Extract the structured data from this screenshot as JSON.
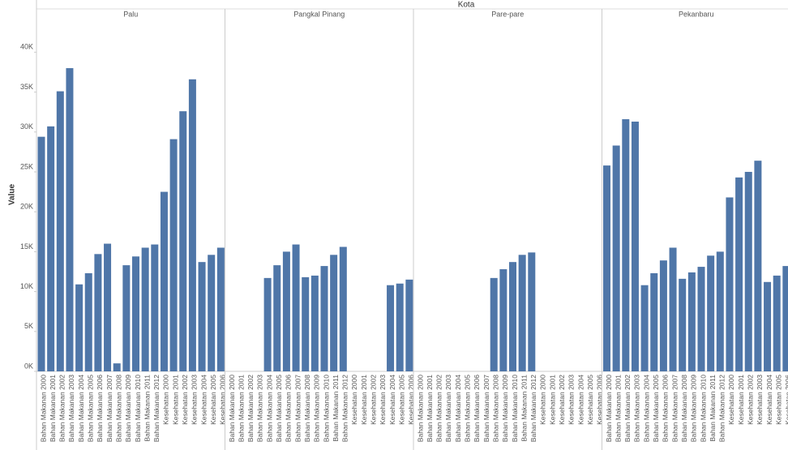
{
  "chart_data": {
    "type": "bar",
    "header": "Kota",
    "ylabel": "Value",
    "color": "#4f76a8",
    "categories": [
      "Bahan Makanan 2000",
      "Bahan Makanan 2001",
      "Bahan Makanan 2002",
      "Bahan Makanan 2003",
      "Bahan Makanan 2004",
      "Bahan Makanan 2005",
      "Bahan Makanan 2006",
      "Bahan Makanan 2007",
      "Bahan Makanan 2008",
      "Bahan Makanan 2009",
      "Bahan Makanan 2010",
      "Bahan Makanan 2011",
      "Bahan Makanan 2012",
      "Kesehatan 2000",
      "Kesehatan 2001",
      "Kesehatan 2002",
      "Kesehatan 2003",
      "Kesehatan 2004",
      "Kesehatan 2005",
      "Kesehatan 2006"
    ],
    "ylim": [
      0,
      44000
    ],
    "yticks": [
      {
        "value": 0,
        "label": "0K"
      },
      {
        "value": 5000,
        "label": "5K"
      },
      {
        "value": 10000,
        "label": "10K"
      },
      {
        "value": 15000,
        "label": "15K"
      },
      {
        "value": 20000,
        "label": "20K"
      },
      {
        "value": 25000,
        "label": "25K"
      },
      {
        "value": 30000,
        "label": "30K"
      },
      {
        "value": 35000,
        "label": "35K"
      },
      {
        "value": 40000,
        "label": "40K"
      }
    ],
    "series": [
      {
        "name": "Palu",
        "values": [
          29400,
          30700,
          35100,
          38000,
          10900,
          12300,
          14700,
          16000,
          1000,
          13300,
          14400,
          15500,
          15900,
          22500,
          29100,
          32600,
          36600,
          13700,
          14600,
          15500
        ]
      },
      {
        "name": "Pangkal Pinang",
        "values": [
          null,
          null,
          null,
          null,
          11700,
          13300,
          15000,
          15900,
          11800,
          12000,
          13200,
          14600,
          15600,
          null,
          null,
          null,
          null,
          10800,
          11000,
          11500
        ]
      },
      {
        "name": "Pare-pare",
        "values": [
          null,
          null,
          null,
          null,
          null,
          null,
          null,
          null,
          11700,
          12800,
          13700,
          14600,
          14900,
          null,
          null,
          null,
          null,
          null,
          null,
          null
        ]
      },
      {
        "name": "Pekanbaru",
        "values": [
          25800,
          28300,
          31600,
          31300,
          10800,
          12300,
          13900,
          15500,
          11600,
          12400,
          13100,
          14500,
          15000,
          21800,
          24300,
          25000,
          26400,
          11200,
          12000,
          13200
        ]
      }
    ]
  }
}
